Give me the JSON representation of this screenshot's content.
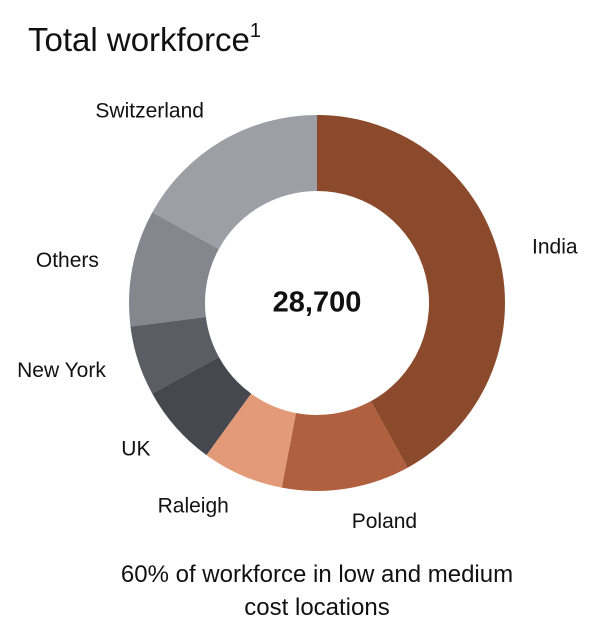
{
  "chart_data": {
    "type": "donut",
    "title": "Total workforce",
    "title_footnote": "1",
    "center_label": "28,700",
    "categories": [
      "India",
      "Poland",
      "Raleigh",
      "UK",
      "New York",
      "Others",
      "Switzerland"
    ],
    "values": [
      42,
      11,
      7,
      7,
      6,
      10,
      17
    ],
    "colors": [
      "#8b4a2b",
      "#b0603f",
      "#e39a78",
      "#46474f",
      "#5c5d64",
      "#85868e",
      "#9d9ea6"
    ],
    "note": "60% of workforce in low and medium cost locations"
  }
}
